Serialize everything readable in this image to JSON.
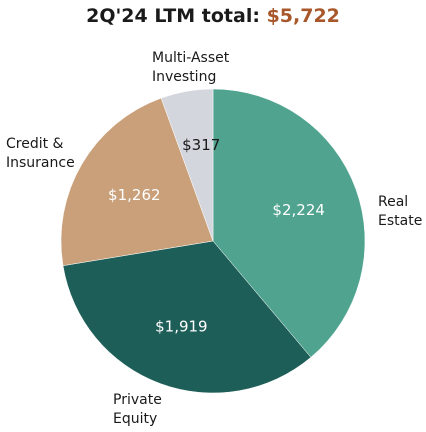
{
  "header": {
    "title_prefix": "2Q'24 LTM total:",
    "title_total": "$5,722"
  },
  "chart_data": {
    "type": "pie",
    "title": "2Q'24 LTM total: $5,722",
    "total": 5722,
    "slices": [
      {
        "category": [
          "Real",
          "Estate"
        ],
        "value": 2224,
        "label": "$2,224",
        "color": "#4fa38f",
        "label_color": "#ffffff"
      },
      {
        "category": [
          "Private",
          "Equity"
        ],
        "value": 1919,
        "label": "$1,919",
        "color": "#1e5e58",
        "label_color": "#ffffff"
      },
      {
        "category": [
          "Credit &",
          "Insurance"
        ],
        "value": 1262,
        "label": "$1,262",
        "color": "#c9a07a",
        "label_color": "#ffffff"
      },
      {
        "category": [
          "Multi-Asset",
          "Investing"
        ],
        "value": 317,
        "label": "$317",
        "color": "#d4d6de",
        "label_color": "#1a1a1a"
      }
    ]
  }
}
